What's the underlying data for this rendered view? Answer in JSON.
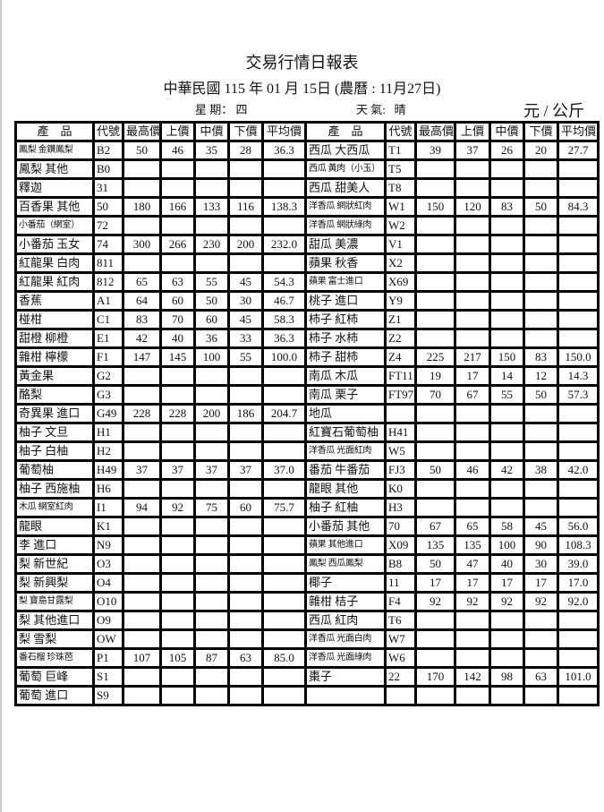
{
  "title": "交易行情日報表",
  "subtitle": "中華民國 115 年 01 月 15日 (農曆 : 11月27日)",
  "weekday_label": "星 期：",
  "weekday": "四",
  "weather_label": "天 氣:",
  "weather": "晴",
  "unit": "元 / 公斤",
  "headers": [
    "產　品",
    "代號",
    "最高價",
    "上價",
    "中價",
    "下價",
    "平均價",
    "產　品",
    "代號",
    "最高價",
    "上價",
    "中價",
    "下價",
    "平均價"
  ],
  "rows": [
    [
      [
        "鳳梨 金鑽鳳梨",
        "B2",
        "50",
        "46",
        "35",
        "28",
        "36.3"
      ],
      [
        "西瓜 大西瓜",
        "T1",
        "39",
        "37",
        "26",
        "20",
        "27.7"
      ]
    ],
    [
      [
        "鳳梨 其他",
        "B0",
        "",
        "",
        "",
        "",
        ""
      ],
      [
        "西瓜 黃肉（小玉）",
        "T5",
        "",
        "",
        "",
        "",
        ""
      ]
    ],
    [
      [
        "釋迦",
        "31",
        "",
        "",
        "",
        "",
        ""
      ],
      [
        "西瓜 甜美人",
        "T8",
        "",
        "",
        "",
        "",
        ""
      ]
    ],
    [
      [
        "百香果 其他",
        "50",
        "180",
        "166",
        "133",
        "116",
        "138.3"
      ],
      [
        "洋香瓜 網狀紅肉",
        "W1",
        "150",
        "120",
        "83",
        "50",
        "84.3"
      ]
    ],
    [
      [
        "小番茄（網室）",
        "72",
        "",
        "",
        "",
        "",
        ""
      ],
      [
        "洋香瓜 網狀綠肉",
        "W2",
        "",
        "",
        "",
        "",
        ""
      ]
    ],
    [
      [
        "小番茄 玉女",
        "74",
        "300",
        "266",
        "230",
        "200",
        "232.0"
      ],
      [
        "甜瓜 美濃",
        "V1",
        "",
        "",
        "",
        "",
        ""
      ]
    ],
    [
      [
        "紅龍果 白肉",
        "811",
        "",
        "",
        "",
        "",
        ""
      ],
      [
        "蘋果 秋香",
        "X2",
        "",
        "",
        "",
        "",
        ""
      ]
    ],
    [
      [
        "紅龍果 紅肉",
        "812",
        "65",
        "63",
        "55",
        "45",
        "54.3"
      ],
      [
        "蘋果 富士進口",
        "X69",
        "",
        "",
        "",
        "",
        ""
      ]
    ],
    [
      [
        "香蕉",
        "A1",
        "64",
        "60",
        "50",
        "30",
        "46.7"
      ],
      [
        "桃子 進口",
        "Y9",
        "",
        "",
        "",
        "",
        ""
      ]
    ],
    [
      [
        "椪柑",
        "C1",
        "83",
        "70",
        "60",
        "45",
        "58.3"
      ],
      [
        "柿子 紅柿",
        "Z1",
        "",
        "",
        "",
        "",
        ""
      ]
    ],
    [
      [
        "甜橙 柳橙",
        "E1",
        "42",
        "40",
        "36",
        "33",
        "36.3"
      ],
      [
        "柿子 水柿",
        "Z2",
        "",
        "",
        "",
        "",
        ""
      ]
    ],
    [
      [
        "雜柑 檸檬",
        "F1",
        "147",
        "145",
        "100",
        "55",
        "100.0"
      ],
      [
        "柿子 甜柿",
        "Z4",
        "225",
        "217",
        "150",
        "83",
        "150.0"
      ]
    ],
    [
      [
        "黃金果",
        "G2",
        "",
        "",
        "",
        "",
        ""
      ],
      [
        "南瓜 木瓜",
        "FT11",
        "19",
        "17",
        "14",
        "12",
        "14.3"
      ]
    ],
    [
      [
        "酪梨",
        "G3",
        "",
        "",
        "",
        "",
        ""
      ],
      [
        "南瓜 栗子",
        "FT97",
        "70",
        "67",
        "55",
        "50",
        "57.3"
      ]
    ],
    [
      [
        "奇異果 進口",
        "G49",
        "228",
        "228",
        "200",
        "186",
        "204.7"
      ],
      [
        "地瓜",
        "",
        "",
        "",
        "",
        "",
        ""
      ]
    ],
    [
      [
        "柚子 文旦",
        "H1",
        "",
        "",
        "",
        "",
        ""
      ],
      [
        "紅寶石葡萄柚",
        "H41",
        "",
        "",
        "",
        "",
        ""
      ]
    ],
    [
      [
        "柚子 白柚",
        "H2",
        "",
        "",
        "",
        "",
        ""
      ],
      [
        "洋香瓜 光面紅肉",
        "W5",
        "",
        "",
        "",
        "",
        ""
      ]
    ],
    [
      [
        "葡萄柚",
        "H49",
        "37",
        "37",
        "37",
        "37",
        "37.0"
      ],
      [
        "番茄 牛番茄",
        "FJ3",
        "50",
        "46",
        "42",
        "38",
        "42.0"
      ]
    ],
    [
      [
        "柚子 西施柚",
        "H6",
        "",
        "",
        "",
        "",
        ""
      ],
      [
        "龍眼 其他",
        "K0",
        "",
        "",
        "",
        "",
        ""
      ]
    ],
    [
      [
        "木瓜 網室紅肉",
        "I1",
        "94",
        "92",
        "75",
        "60",
        "75.7"
      ],
      [
        "柚子 紅柚",
        "H3",
        "",
        "",
        "",
        "",
        ""
      ]
    ],
    [
      [
        "龍眼",
        "K1",
        "",
        "",
        "",
        "",
        ""
      ],
      [
        "小番茄 其他",
        "70",
        "67",
        "65",
        "58",
        "45",
        "56.0"
      ]
    ],
    [
      [
        "李 進口",
        "N9",
        "",
        "",
        "",
        "",
        ""
      ],
      [
        "蘋果 其他進口",
        "X09",
        "135",
        "135",
        "100",
        "90",
        "108.3"
      ]
    ],
    [
      [
        "梨 新世紀",
        "O3",
        "",
        "",
        "",
        "",
        ""
      ],
      [
        "鳳梨 西瓜鳳梨",
        "B8",
        "50",
        "47",
        "40",
        "30",
        "39.0"
      ]
    ],
    [
      [
        "梨 新興梨",
        "O4",
        "",
        "",
        "",
        "",
        ""
      ],
      [
        "椰子",
        "11",
        "17",
        "17",
        "17",
        "17",
        "17.0"
      ]
    ],
    [
      [
        "梨 寶島甘露梨",
        "O10",
        "",
        "",
        "",
        "",
        ""
      ],
      [
        "雜柑 桔子",
        "F4",
        "92",
        "92",
        "92",
        "92",
        "92.0"
      ]
    ],
    [
      [
        "梨 其他進口",
        "O9",
        "",
        "",
        "",
        "",
        ""
      ],
      [
        "西瓜 紅肉",
        "T6",
        "",
        "",
        "",
        "",
        ""
      ]
    ],
    [
      [
        "梨 雪梨",
        "OW",
        "",
        "",
        "",
        "",
        ""
      ],
      [
        "洋香瓜 光面白肉",
        "W7",
        "",
        "",
        "",
        "",
        ""
      ]
    ],
    [
      [
        "番石榴 珍珠芭",
        "P1",
        "107",
        "105",
        "87",
        "63",
        "85.0"
      ],
      [
        "洋香瓜 光面綠肉",
        "W6",
        "",
        "",
        "",
        "",
        ""
      ]
    ],
    [
      [
        "葡萄 巨峰",
        "S1",
        "",
        "",
        "",
        "",
        ""
      ],
      [
        "棗子",
        "22",
        "170",
        "142",
        "98",
        "63",
        "101.0"
      ]
    ],
    [
      [
        "葡萄 進口",
        "S9",
        "",
        "",
        "",
        "",
        ""
      ],
      [
        "",
        "",
        "",
        "",
        "",
        "",
        ""
      ]
    ]
  ]
}
